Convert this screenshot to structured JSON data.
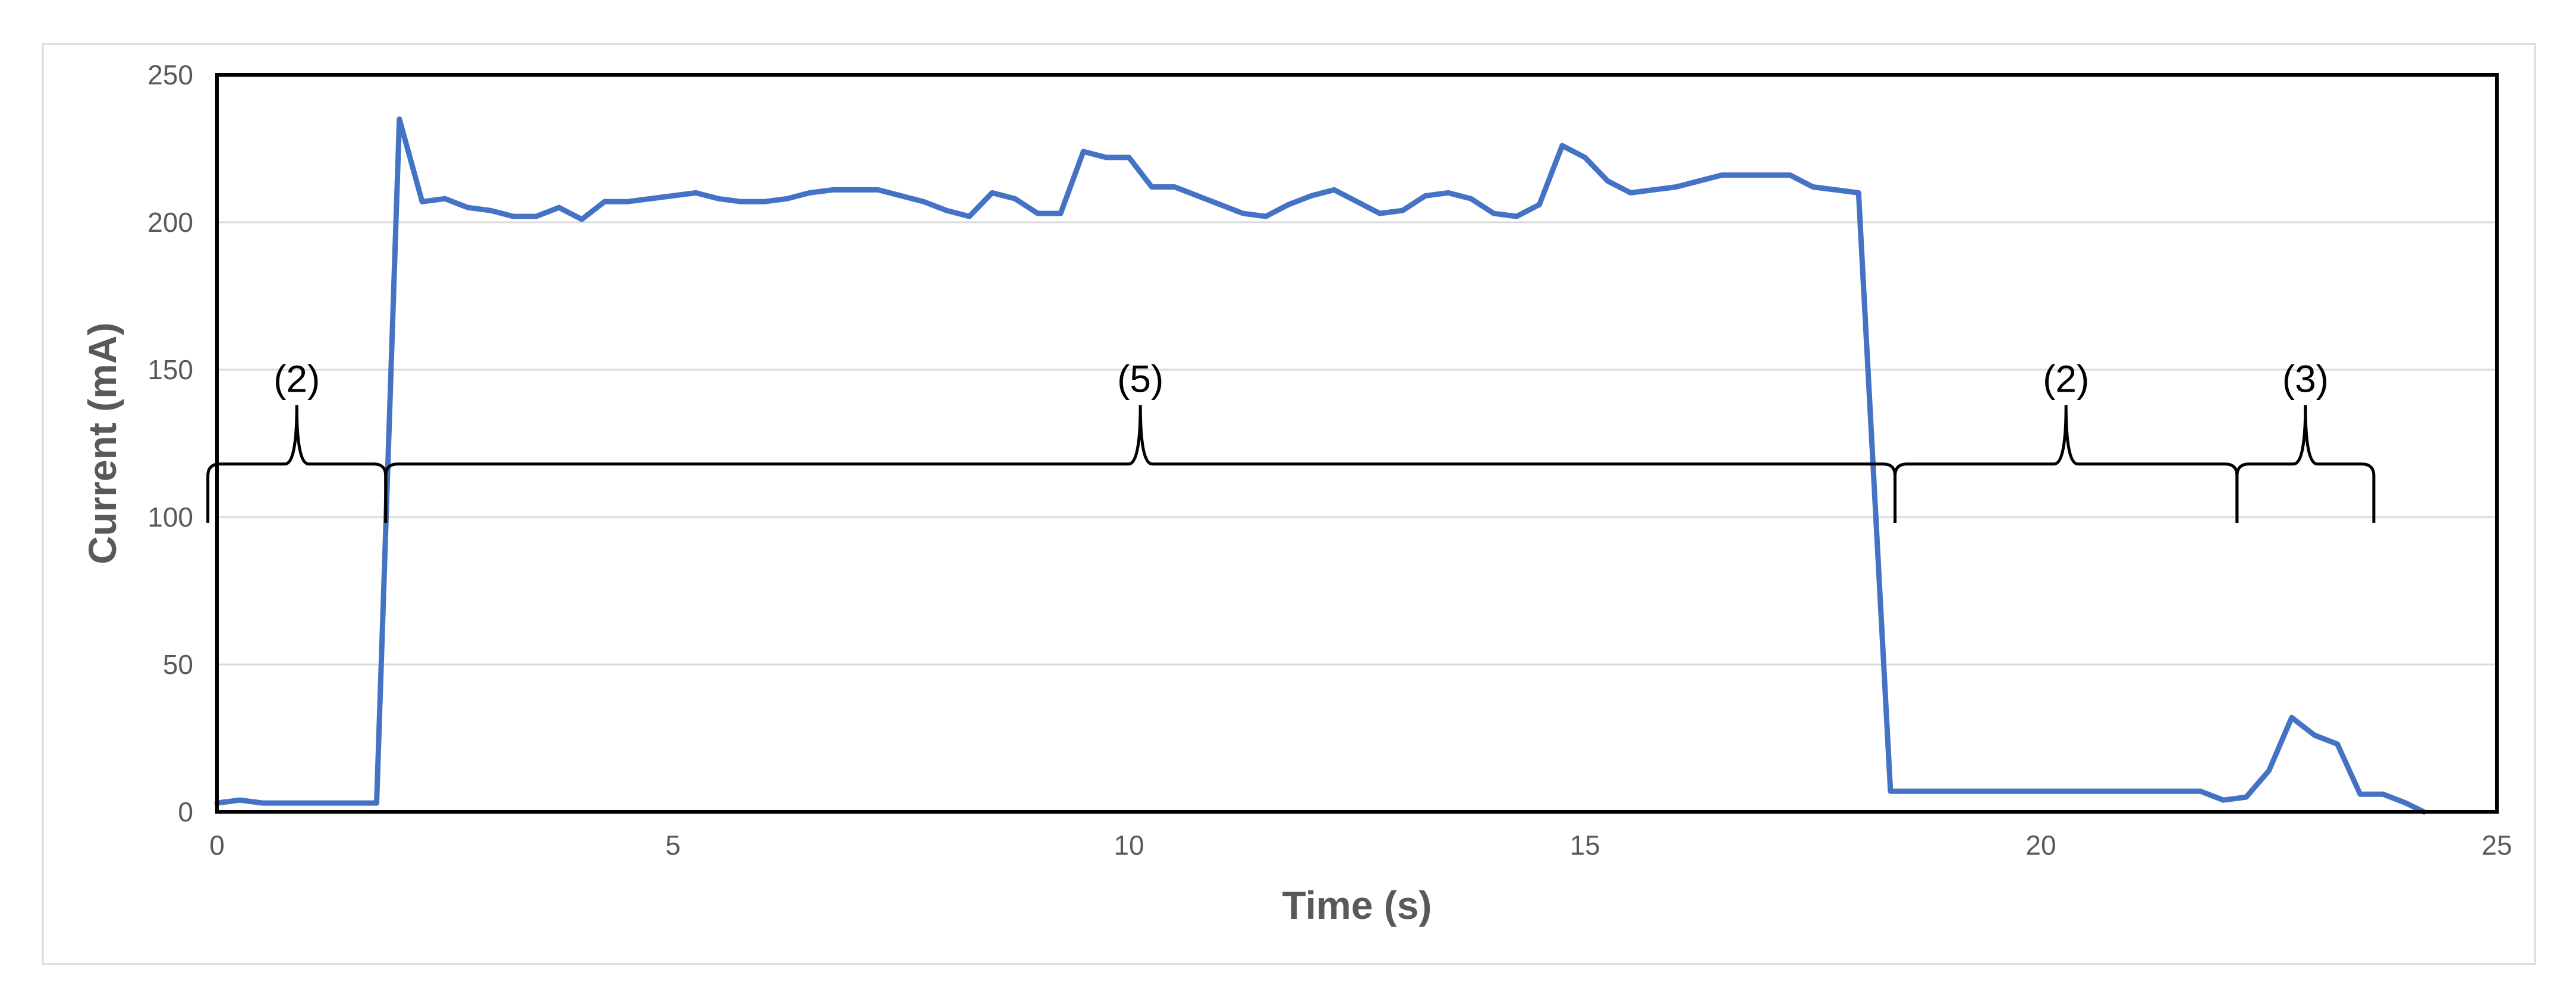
{
  "chart_data": {
    "type": "line",
    "title": "",
    "xlabel": "Time (s)",
    "ylabel": "Current (mA)",
    "xlim": [
      0,
      25
    ],
    "ylim": [
      0,
      250
    ],
    "xticks": [
      0,
      5,
      10,
      15,
      20,
      25
    ],
    "yticks": [
      0,
      50,
      100,
      150,
      200,
      250
    ],
    "grid": "horizontal",
    "legend": "none",
    "colors": {
      "series": "#4472C4",
      "grid": "#D9D9D9",
      "frame": "#000000",
      "annotation": "#000000",
      "outer_border": "#D9D9D9"
    },
    "series": [
      {
        "points": [
          [
            0.0,
            3
          ],
          [
            0.25,
            4
          ],
          [
            0.5,
            3
          ],
          [
            1.0,
            3
          ],
          [
            1.5,
            3
          ],
          [
            1.75,
            3
          ],
          [
            2.0,
            235
          ],
          [
            2.25,
            207
          ],
          [
            2.5,
            208
          ],
          [
            2.75,
            205
          ],
          [
            3.0,
            204
          ],
          [
            3.25,
            202
          ],
          [
            3.5,
            202
          ],
          [
            3.75,
            205
          ],
          [
            4.0,
            201
          ],
          [
            4.25,
            207
          ],
          [
            4.5,
            207
          ],
          [
            5.0,
            209
          ],
          [
            5.25,
            210
          ],
          [
            5.5,
            208
          ],
          [
            5.75,
            207
          ],
          [
            6.0,
            207
          ],
          [
            6.25,
            208
          ],
          [
            6.5,
            210
          ],
          [
            6.75,
            211
          ],
          [
            7.0,
            211
          ],
          [
            7.25,
            211
          ],
          [
            7.5,
            209
          ],
          [
            7.75,
            207
          ],
          [
            8.0,
            204
          ],
          [
            8.25,
            202
          ],
          [
            8.5,
            210
          ],
          [
            8.75,
            208
          ],
          [
            9.0,
            203
          ],
          [
            9.25,
            203
          ],
          [
            9.5,
            224
          ],
          [
            9.75,
            222
          ],
          [
            10.0,
            222
          ],
          [
            10.25,
            212
          ],
          [
            10.5,
            212
          ],
          [
            11.0,
            206
          ],
          [
            11.25,
            203
          ],
          [
            11.5,
            202
          ],
          [
            11.75,
            206
          ],
          [
            12.0,
            209
          ],
          [
            12.25,
            211
          ],
          [
            12.5,
            207
          ],
          [
            12.75,
            203
          ],
          [
            13.0,
            204
          ],
          [
            13.25,
            209
          ],
          [
            13.5,
            210
          ],
          [
            13.75,
            208
          ],
          [
            14.0,
            203
          ],
          [
            14.25,
            202
          ],
          [
            14.5,
            206
          ],
          [
            14.75,
            226
          ],
          [
            15.0,
            222
          ],
          [
            15.25,
            214
          ],
          [
            15.5,
            210
          ],
          [
            16.0,
            212
          ],
          [
            16.5,
            216
          ],
          [
            17.0,
            216
          ],
          [
            17.25,
            216
          ],
          [
            17.5,
            212
          ],
          [
            18.0,
            210
          ],
          [
            18.35,
            7
          ],
          [
            19.0,
            7
          ],
          [
            20.0,
            7
          ],
          [
            21.0,
            7
          ],
          [
            21.75,
            7
          ],
          [
            22.0,
            4
          ],
          [
            22.25,
            5
          ],
          [
            22.5,
            14
          ],
          [
            22.75,
            32
          ],
          [
            23.0,
            26
          ],
          [
            23.25,
            23
          ],
          [
            23.5,
            6
          ],
          [
            23.75,
            6
          ],
          [
            24.0,
            3
          ],
          [
            24.2,
            0
          ]
        ]
      }
    ],
    "annotations": [
      {
        "label": "(2)",
        "x_start": -0.1,
        "x_end": 1.85
      },
      {
        "label": "(5)",
        "x_start": 1.85,
        "x_end": 18.4
      },
      {
        "label": "(2)",
        "x_start": 18.4,
        "x_end": 22.15
      },
      {
        "label": "(3)",
        "x_start": 22.15,
        "x_end": 23.65
      }
    ],
    "annotation_y": {
      "bracket_bottom": 98,
      "bracket_line": 118,
      "peak": 138
    }
  }
}
